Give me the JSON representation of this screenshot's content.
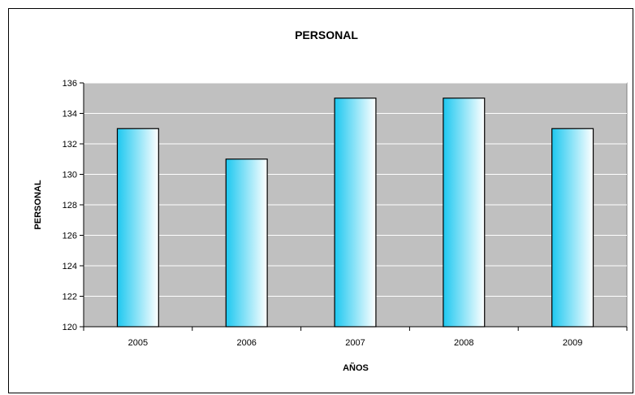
{
  "chart_data": {
    "type": "bar",
    "title": "PERSONAL",
    "xlabel": "AÑOS",
    "ylabel": "PERSONAL",
    "categories": [
      "2005",
      "2006",
      "2007",
      "2008",
      "2009"
    ],
    "values": [
      133,
      131,
      135,
      135,
      133
    ],
    "ylim": [
      120,
      136
    ],
    "yticks": [
      120,
      122,
      124,
      126,
      128,
      130,
      132,
      134,
      136
    ],
    "grid": true,
    "legend": "none",
    "colors": {
      "plot_background": "#c0c0c0",
      "gridline": "#ffffff",
      "bar_gradient_start": "#1ec8f0",
      "bar_gradient_end": "#ffffff",
      "bar_outline": "#000000"
    }
  }
}
